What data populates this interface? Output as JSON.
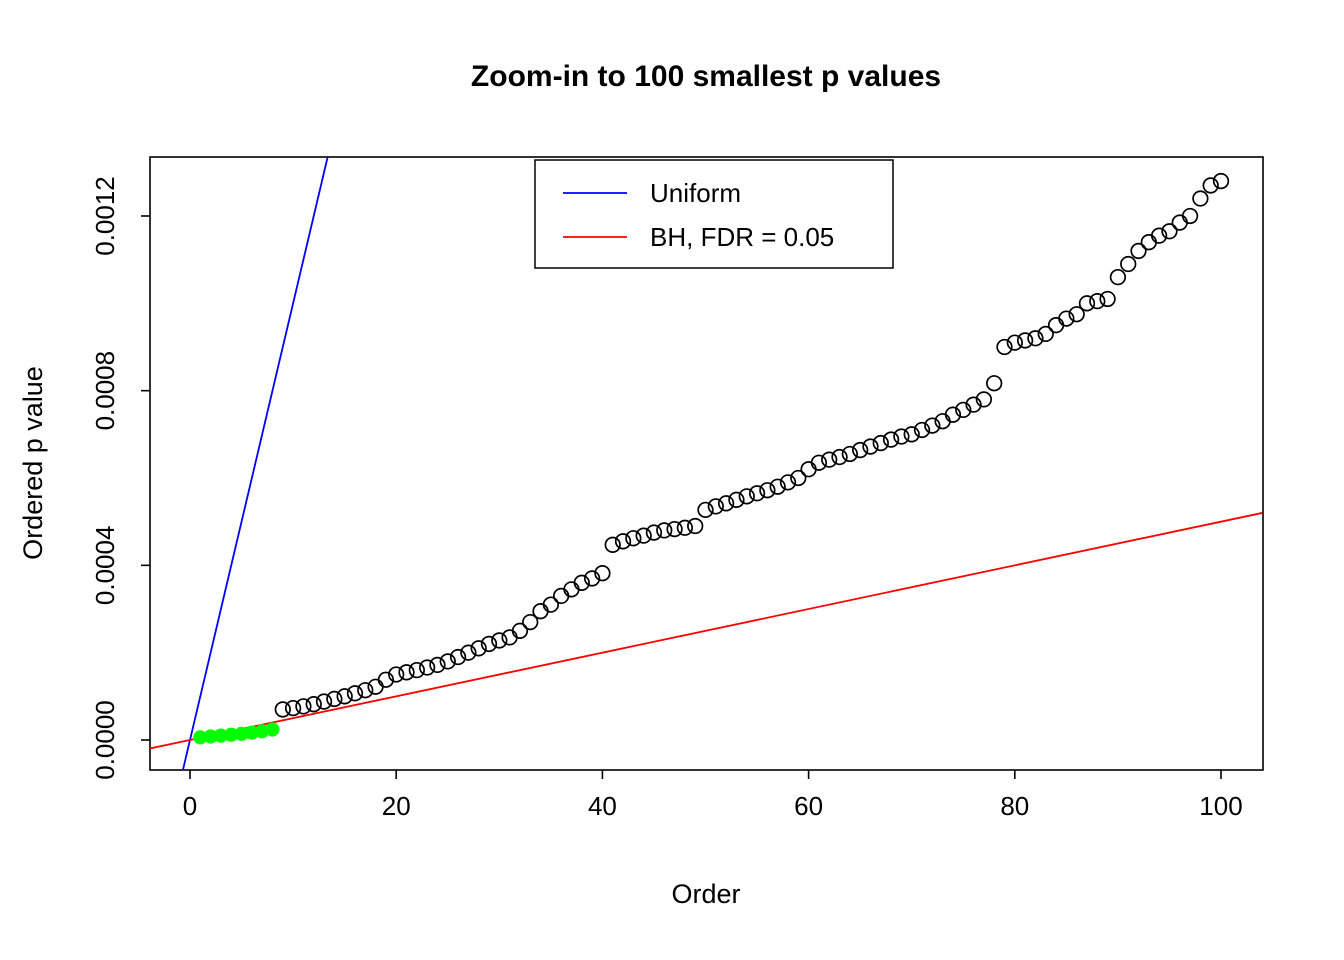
{
  "chart_data": {
    "type": "scatter",
    "title": "Zoom-in to 100 smallest p values",
    "xlabel": "Order",
    "ylabel": "Ordered p value",
    "xlim": [
      -4,
      104
    ],
    "ylim": [
      -7e-05,
      0.001335
    ],
    "grid": false,
    "x_ticks": [
      0,
      20,
      40,
      60,
      80,
      100
    ],
    "y_ticks": [
      0,
      0.0004,
      0.0008,
      0.0012
    ],
    "y_tick_labels": [
      "0.0000",
      "0.0004",
      "0.0008",
      "0.0012"
    ],
    "series": [
      {
        "name": "significant-bh-points",
        "marker": "filled-circle",
        "color": "#00ff00",
        "x": [
          1,
          2,
          3,
          4,
          5,
          6,
          7,
          8
        ],
        "y": [
          6e-06,
          8e-06,
          1e-05,
          1.2e-05,
          1.4e-05,
          1.7e-05,
          2e-05,
          2.4e-05
        ]
      },
      {
        "name": "ordered-p-value-points",
        "marker": "open-circle",
        "color": "#000000",
        "x": [
          9,
          10,
          11,
          12,
          13,
          14,
          15,
          16,
          17,
          18,
          19,
          20,
          21,
          22,
          23,
          24,
          25,
          26,
          27,
          28,
          29,
          30,
          31,
          32,
          33,
          34,
          35,
          36,
          37,
          38,
          39,
          40,
          41,
          42,
          43,
          44,
          45,
          46,
          47,
          48,
          49,
          50,
          51,
          52,
          53,
          54,
          55,
          56,
          57,
          58,
          59,
          60,
          61,
          62,
          63,
          64,
          65,
          66,
          67,
          68,
          69,
          70,
          71,
          72,
          73,
          74,
          75,
          76,
          77,
          78,
          79,
          80,
          81,
          82,
          83,
          84,
          85,
          86,
          87,
          88,
          89,
          90,
          91,
          92,
          93,
          94,
          95,
          96,
          97,
          98,
          99,
          100
        ],
        "y": [
          7e-05,
          7.3e-05,
          7.7e-05,
          8.2e-05,
          8.8e-05,
          9.4e-05,
          0.0001,
          0.000107,
          0.000114,
          0.000122,
          0.000138,
          0.00015,
          0.000155,
          0.00016,
          0.000166,
          0.000172,
          0.00018,
          0.00019,
          0.0002,
          0.00021,
          0.00022,
          0.000228,
          0.000235,
          0.00025,
          0.00027,
          0.000295,
          0.00031,
          0.00033,
          0.000345,
          0.00036,
          0.00037,
          0.000382,
          0.000447,
          0.000455,
          0.000462,
          0.000468,
          0.000475,
          0.00048,
          0.000483,
          0.000486,
          0.00049,
          0.000527,
          0.000535,
          0.000542,
          0.00055,
          0.000558,
          0.000565,
          0.000572,
          0.00058,
          0.00059,
          0.0006,
          0.00062,
          0.000635,
          0.000642,
          0.000648,
          0.000655,
          0.000664,
          0.000672,
          0.00068,
          0.000688,
          0.000695,
          0.0007,
          0.00071,
          0.00072,
          0.00073,
          0.000745,
          0.000756,
          0.000768,
          0.00078,
          0.000817,
          0.0009,
          0.00091,
          0.000915,
          0.00092,
          0.00093,
          0.00095,
          0.000965,
          0.000975,
          0.001,
          0.001005,
          0.00101,
          0.00106,
          0.00109,
          0.00112,
          0.00114,
          0.001155,
          0.001165,
          0.001185,
          0.0012,
          0.00124,
          0.00127,
          0.00128
        ]
      }
    ],
    "lines": [
      {
        "name": "Uniform",
        "color": "#0000ff",
        "slope": 0.0001,
        "intercept": 0
      },
      {
        "name": "BH, FDR = 0.05",
        "color": "#ff0000",
        "slope": 5e-06,
        "intercept": 0
      }
    ],
    "legend": {
      "position": "top-center",
      "entries": [
        {
          "label": "Uniform",
          "color": "#0000ff"
        },
        {
          "label": "BH, FDR = 0.05",
          "color": "#ff0000"
        }
      ]
    }
  }
}
